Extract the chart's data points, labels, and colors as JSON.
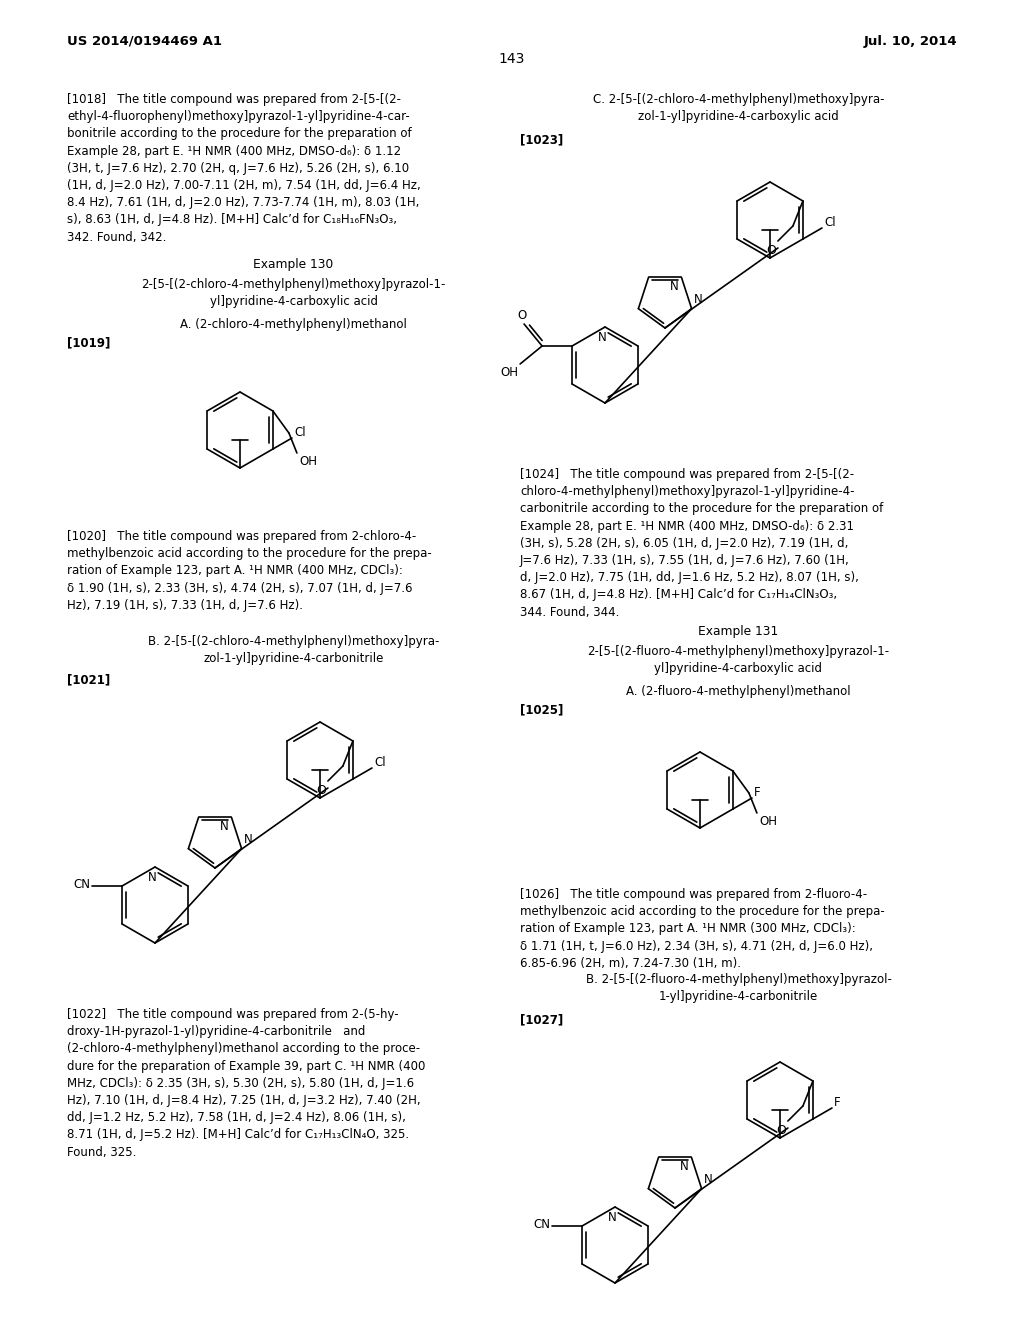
{
  "background_color": "#ffffff",
  "text_color": "#000000",
  "header_left": "US 2014/0194469 A1",
  "header_right": "Jul. 10, 2014",
  "page_num": "143",
  "lm": 0.065,
  "rm": 0.935,
  "col2": 0.508,
  "body_fs": 8.5,
  "bold_fs": 8.7,
  "title_fs": 9.0
}
